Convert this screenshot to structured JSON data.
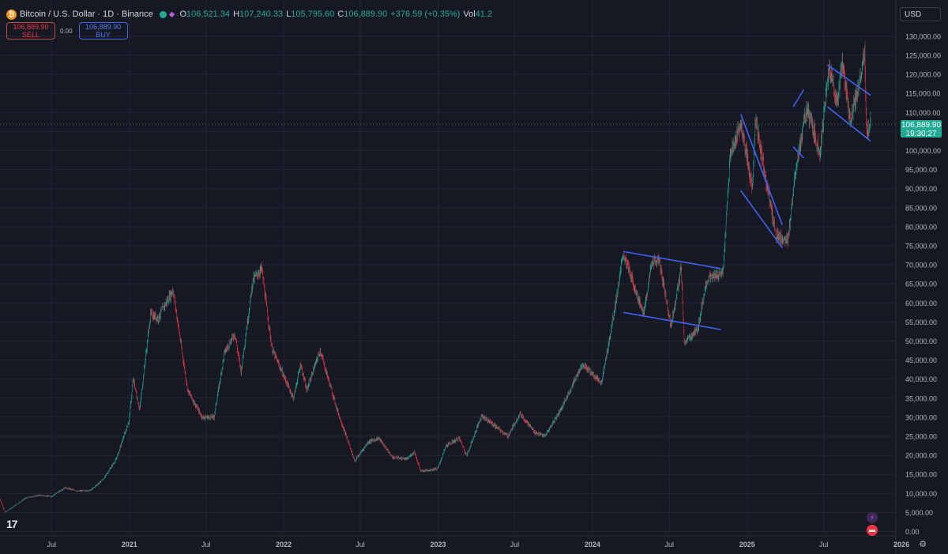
{
  "header": {
    "symbol_icon": "bitcoin-icon",
    "symbol": "Bitcoin / U.S. Dollar · 1D · Binance",
    "o_label": "O",
    "o": "106,521.34",
    "h_label": "H",
    "h": "107,240.33",
    "l_label": "L",
    "l": "105,795.60",
    "c_label": "C",
    "c": "106,889.90",
    "change": "+376.59 (+0.35%)",
    "vol_label": "Vol",
    "vol": "41.2"
  },
  "trade": {
    "sell_price": "106,889.90",
    "sell_label": "SELL",
    "spread": "0.00",
    "buy_price": "106,889.90",
    "buy_label": "BUY"
  },
  "currency_button": "USD",
  "last_price": {
    "price": "106,889.90",
    "countdown": "19:30:27"
  },
  "colors": {
    "up": "#22ab94",
    "down": "#f23645",
    "trendline": "#3f62f2",
    "background": "#161824"
  },
  "chart_data": {
    "type": "candlestick",
    "title": "Bitcoin / U.S. Dollar · 1D · Binance",
    "y_scale": "linear",
    "ylim": [
      0,
      130000
    ],
    "y_ticks": [
      "0.00",
      "5,000.00",
      "10,000.00",
      "15,000.00",
      "20,000.00",
      "25,000.00",
      "30,000.00",
      "35,000.00",
      "40,000.00",
      "45,000.00",
      "50,000.00",
      "55,000.00",
      "60,000.00",
      "65,000.00",
      "70,000.00",
      "75,000.00",
      "80,000.00",
      "85,000.00",
      "90,000.00",
      "95,000.00",
      "100,000.00",
      "105,000.00",
      "110,000.00",
      "115,000.00",
      "120,000.00",
      "125,000.00",
      "130,000.00"
    ],
    "x_ticks": [
      {
        "label": "Jul",
        "date": "2020-07-01"
      },
      {
        "label": "2021",
        "date": "2021-01-01"
      },
      {
        "label": "Jul",
        "date": "2021-07-01"
      },
      {
        "label": "2022",
        "date": "2022-01-01"
      },
      {
        "label": "Jul",
        "date": "2022-07-01"
      },
      {
        "label": "2023",
        "date": "2023-01-01"
      },
      {
        "label": "Jul",
        "date": "2023-07-01"
      },
      {
        "label": "2024",
        "date": "2024-01-01"
      },
      {
        "label": "Jul",
        "date": "2024-07-01"
      },
      {
        "label": "2025",
        "date": "2025-01-01"
      },
      {
        "label": "Jul",
        "date": "2025-07-01"
      },
      {
        "label": "2026",
        "date": "2026-01-01"
      }
    ],
    "x_range": [
      "2020-03-01",
      "2026-01-20"
    ],
    "grid": true,
    "last_price": 106889.9,
    "price_path": [
      [
        "2020-03-01",
        8500
      ],
      [
        "2020-03-13",
        5000
      ],
      [
        "2020-04-01",
        6500
      ],
      [
        "2020-05-01",
        8800
      ],
      [
        "2020-06-01",
        9500
      ],
      [
        "2020-07-01",
        9200
      ],
      [
        "2020-08-01",
        11500
      ],
      [
        "2020-09-01",
        10600
      ],
      [
        "2020-10-01",
        10800
      ],
      [
        "2020-11-01",
        13800
      ],
      [
        "2020-12-01",
        19000
      ],
      [
        "2020-12-31",
        29000
      ],
      [
        "2021-01-10",
        40000
      ],
      [
        "2021-01-25",
        32000
      ],
      [
        "2021-02-20",
        57000
      ],
      [
        "2021-03-10",
        56000
      ],
      [
        "2021-04-14",
        63500
      ],
      [
        "2021-05-19",
        37000
      ],
      [
        "2021-06-22",
        30000
      ],
      [
        "2021-07-20",
        30000
      ],
      [
        "2021-08-14",
        47000
      ],
      [
        "2021-09-07",
        52000
      ],
      [
        "2021-09-22",
        42000
      ],
      [
        "2021-10-20",
        66000
      ],
      [
        "2021-11-10",
        69000
      ],
      [
        "2021-12-04",
        48000
      ],
      [
        "2022-01-24",
        35000
      ],
      [
        "2022-02-10",
        44000
      ],
      [
        "2022-02-24",
        37000
      ],
      [
        "2022-03-28",
        47500
      ],
      [
        "2022-05-10",
        31000
      ],
      [
        "2022-06-18",
        18500
      ],
      [
        "2022-07-20",
        23500
      ],
      [
        "2022-08-14",
        24500
      ],
      [
        "2022-09-15",
        19500
      ],
      [
        "2022-10-20",
        19000
      ],
      [
        "2022-11-06",
        21000
      ],
      [
        "2022-11-21",
        15800
      ],
      [
        "2022-12-31",
        16500
      ],
      [
        "2023-01-20",
        22500
      ],
      [
        "2023-02-20",
        24500
      ],
      [
        "2023-03-10",
        20000
      ],
      [
        "2023-04-14",
        30500
      ],
      [
        "2023-06-15",
        25000
      ],
      [
        "2023-07-14",
        31000
      ],
      [
        "2023-08-18",
        26000
      ],
      [
        "2023-09-11",
        25000
      ],
      [
        "2023-10-23",
        33000
      ],
      [
        "2023-12-08",
        44000
      ],
      [
        "2024-01-23",
        39000
      ],
      [
        "2024-02-28",
        62000
      ],
      [
        "2024-03-14",
        73000
      ],
      [
        "2024-05-01",
        57000
      ],
      [
        "2024-05-21",
        71000
      ],
      [
        "2024-06-07",
        71000
      ],
      [
        "2024-07-05",
        54000
      ],
      [
        "2024-07-29",
        69000
      ],
      [
        "2024-08-05",
        49500
      ],
      [
        "2024-09-06",
        53000
      ],
      [
        "2024-09-27",
        66000
      ],
      [
        "2024-10-15",
        67000
      ],
      [
        "2024-11-05",
        68000
      ],
      [
        "2024-11-22",
        99000
      ],
      [
        "2024-12-17",
        107000
      ],
      [
        "2025-01-13",
        90000
      ],
      [
        "2025-01-21",
        108000
      ],
      [
        "2025-02-25",
        86000
      ],
      [
        "2025-03-10",
        78000
      ],
      [
        "2025-04-07",
        76000
      ],
      [
        "2025-04-25",
        95000
      ],
      [
        "2025-05-22",
        111000
      ],
      [
        "2025-06-22",
        99500
      ],
      [
        "2025-07-14",
        122000
      ],
      [
        "2025-08-02",
        112500
      ],
      [
        "2025-08-14",
        123500
      ],
      [
        "2025-09-01",
        108000
      ],
      [
        "2025-09-20",
        116000
      ],
      [
        "2025-10-06",
        125500
      ],
      [
        "2025-10-10",
        105000
      ],
      [
        "2025-10-17",
        106000
      ],
      [
        "2025-10-20",
        106889.9
      ]
    ],
    "trendlines": [
      {
        "from": [
          "2024-03-14",
          73500
        ],
        "to": [
          "2024-10-31",
          69000
        ]
      },
      {
        "from": [
          "2024-03-14",
          57500
        ],
        "to": [
          "2024-10-31",
          53000
        ]
      },
      {
        "from": [
          "2024-12-17",
          109500
        ],
        "to": [
          "2025-03-25",
          80500
        ]
      },
      {
        "from": [
          "2024-12-17",
          89500
        ],
        "to": [
          "2025-03-25",
          74500
        ]
      },
      {
        "from": [
          "2025-04-20",
          111500
        ],
        "to": [
          "2025-05-15",
          116000
        ]
      },
      {
        "from": [
          "2025-04-20",
          101000
        ],
        "to": [
          "2025-05-15",
          98000
        ]
      },
      {
        "from": [
          "2025-07-10",
          122500
        ],
        "to": [
          "2025-10-20",
          114500
        ]
      },
      {
        "from": [
          "2025-07-10",
          111500
        ],
        "to": [
          "2025-10-20",
          102500
        ]
      }
    ]
  },
  "icons": {
    "logo": "tradingview-logo",
    "settings": "gear-icon",
    "ind1": "lightning-icon",
    "ind2": "flag-icon",
    "eye": "eye-icon",
    "plug": "plugin-icon"
  }
}
